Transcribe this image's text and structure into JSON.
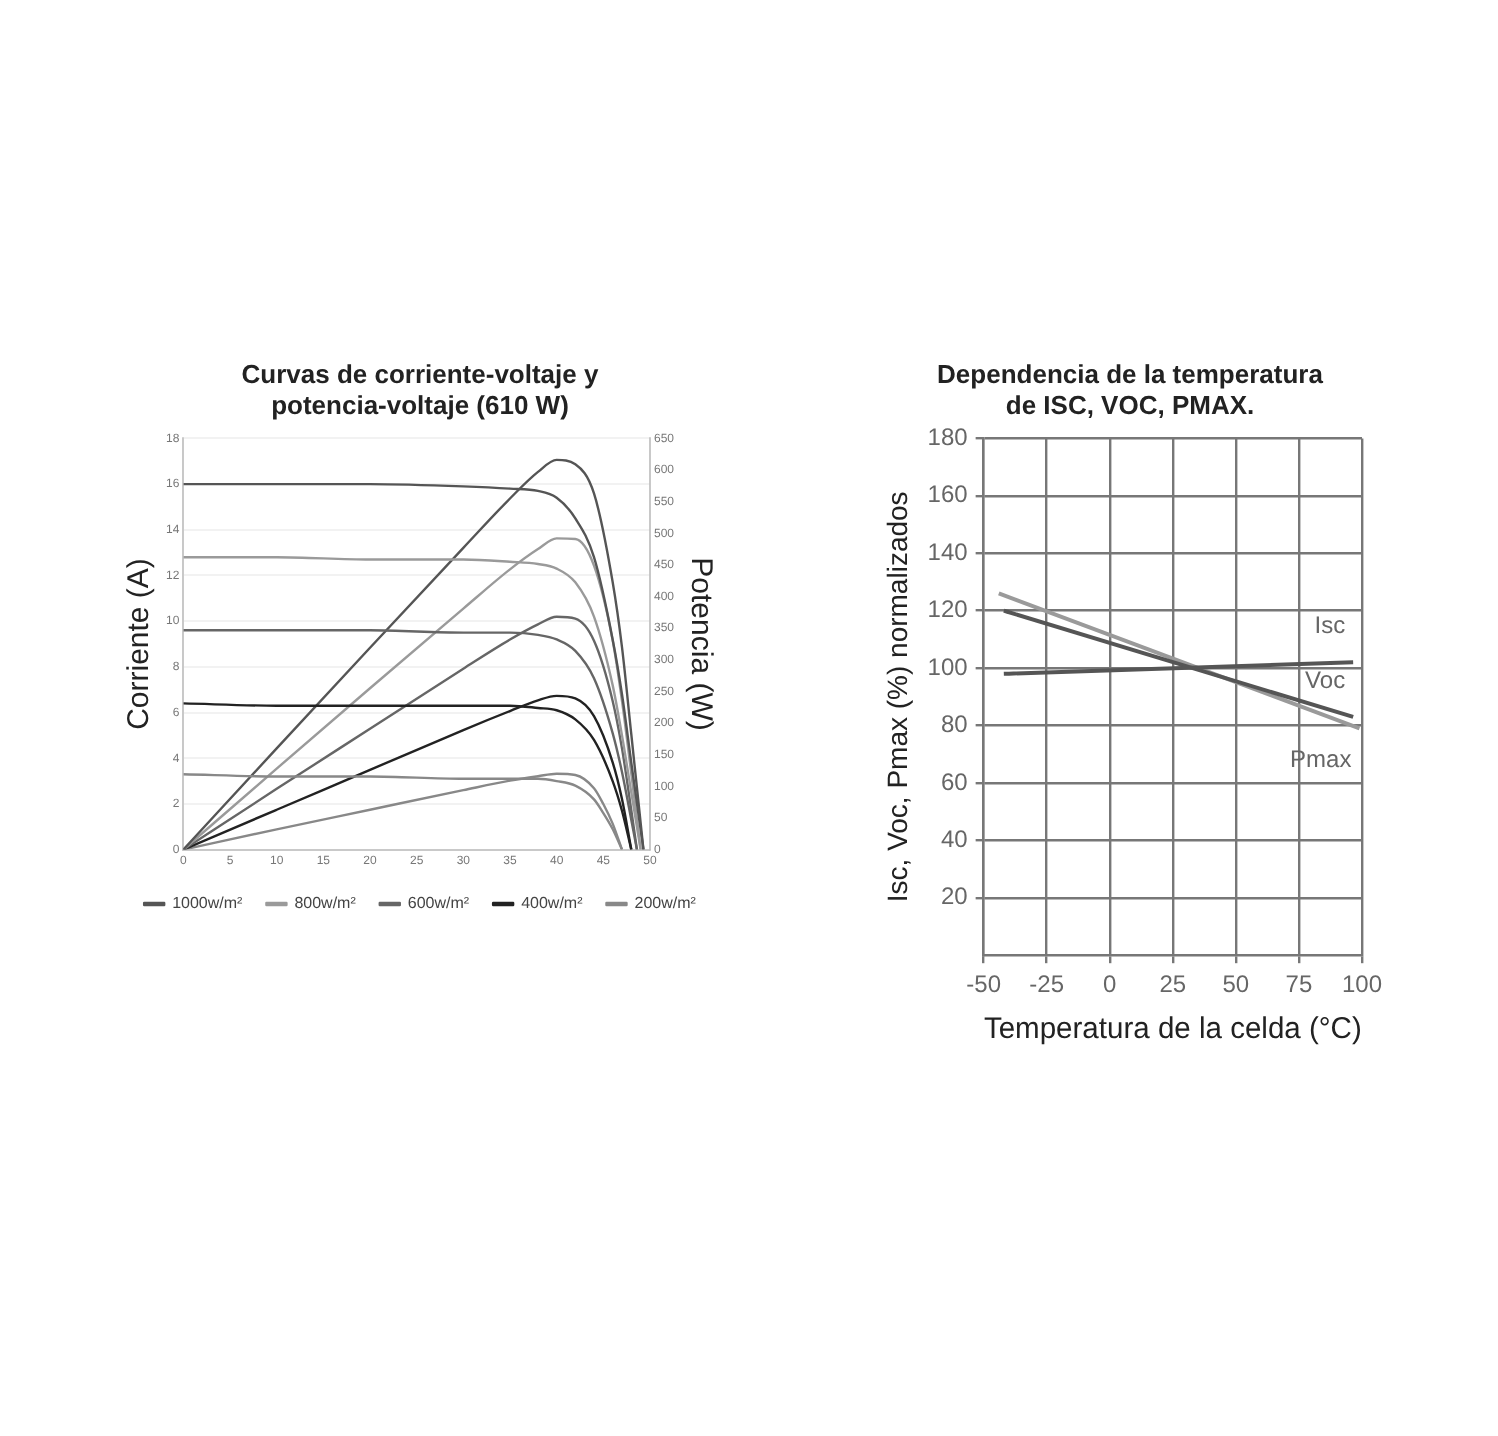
{
  "chart_data": [
    {
      "type": "line",
      "title": [
        "Curvas de corriente-voltaje y",
        "potencia-voltaje (610 W)"
      ],
      "ylabel": "Corriente (A)",
      "y2label": "Potencia (W)",
      "xlim": [
        0,
        50
      ],
      "xticks": [
        0,
        5,
        10,
        15,
        20,
        25,
        30,
        35,
        40,
        45,
        50
      ],
      "ylim": [
        0,
        18
      ],
      "yticks": [
        0,
        2,
        4,
        6,
        8,
        10,
        12,
        14,
        16,
        18
      ],
      "y2lim": [
        0,
        650
      ],
      "y2ticks": [
        0,
        50,
        100,
        150,
        200,
        250,
        300,
        350,
        400,
        450,
        500,
        550,
        600,
        650
      ],
      "grid": "y",
      "legend": "bottom",
      "marker": "none",
      "series": [
        {
          "name": "1000w/m²",
          "color": "#555555",
          "x": [
            0,
            10,
            20,
            30,
            35,
            38,
            40,
            42,
            44,
            46,
            47,
            48,
            49.3
          ],
          "values": [
            16.0,
            16.0,
            16.0,
            15.9,
            15.8,
            15.7,
            15.4,
            14.5,
            12.8,
            9.2,
            6.8,
            3.8,
            0
          ]
        },
        {
          "name": "800w/m²",
          "color": "#9a9a9a",
          "x": [
            0,
            10,
            20,
            30,
            35,
            38,
            40,
            42,
            44,
            46,
            47,
            48,
            49.0
          ],
          "values": [
            12.8,
            12.8,
            12.7,
            12.7,
            12.6,
            12.5,
            12.3,
            11.7,
            10.2,
            7.2,
            5.0,
            2.5,
            0
          ]
        },
        {
          "name": "600w/m²",
          "color": "#666666",
          "x": [
            0,
            10,
            20,
            30,
            35,
            38,
            40,
            42,
            44,
            46,
            47,
            48,
            48.6
          ],
          "values": [
            9.6,
            9.6,
            9.6,
            9.5,
            9.5,
            9.4,
            9.2,
            8.7,
            7.5,
            5.1,
            3.4,
            1.3,
            0
          ]
        },
        {
          "name": "400w/m²",
          "color": "#222222",
          "x": [
            0,
            10,
            20,
            30,
            35,
            38,
            40,
            42,
            44,
            46,
            47,
            48
          ],
          "values": [
            6.4,
            6.3,
            6.3,
            6.3,
            6.3,
            6.2,
            6.1,
            5.7,
            4.8,
            3.0,
            1.7,
            0
          ]
        },
        {
          "name": "200w/m²",
          "color": "#888888",
          "x": [
            0,
            10,
            20,
            30,
            35,
            38,
            40,
            42,
            44,
            45,
            46,
            47
          ],
          "values": [
            3.3,
            3.2,
            3.2,
            3.1,
            3.1,
            3.1,
            3.0,
            2.8,
            2.2,
            1.6,
            0.9,
            0
          ]
        },
        {
          "axis": "y2",
          "color": "#555555",
          "x": [
            0,
            10,
            20,
            30,
            35,
            38,
            40,
            42,
            44,
            46,
            47,
            48,
            49.3
          ],
          "values": [
            0,
            160,
            319,
            477,
            555,
            597,
            616,
            609,
            563,
            423,
            320,
            182,
            0
          ]
        },
        {
          "axis": "y2",
          "color": "#9a9a9a",
          "x": [
            0,
            10,
            20,
            30,
            35,
            38,
            40,
            42,
            44,
            46,
            47,
            48,
            49.0
          ],
          "values": [
            0,
            128,
            255,
            381,
            443,
            475,
            492,
            491,
            449,
            331,
            235,
            120,
            0
          ]
        },
        {
          "axis": "y2",
          "color": "#666666",
          "x": [
            0,
            10,
            20,
            30,
            35,
            38,
            40,
            42,
            44,
            46,
            47,
            48,
            48.6
          ],
          "values": [
            0,
            96,
            191,
            286,
            332,
            356,
            368,
            365,
            330,
            235,
            160,
            62,
            0
          ]
        },
        {
          "axis": "y2",
          "color": "#222222",
          "x": [
            0,
            10,
            20,
            30,
            35,
            38,
            40,
            42,
            44,
            46,
            47,
            48
          ],
          "values": [
            0,
            63,
            126,
            189,
            219,
            236,
            243,
            239,
            211,
            138,
            80,
            0
          ]
        },
        {
          "axis": "y2",
          "color": "#888888",
          "x": [
            0,
            10,
            20,
            30,
            35,
            38,
            40,
            42,
            44,
            45,
            46,
            47
          ],
          "values": [
            0,
            32,
            63,
            94,
            109,
            116,
            120,
            118,
            97,
            72,
            41,
            0
          ]
        }
      ]
    },
    {
      "type": "line",
      "title": [
        "Dependencia de la temperatura",
        "de ISC, VOC, PMAX."
      ],
      "xlabel": "Temperatura de la celda (°C)",
      "ylabel": "Isc, Voc, Pmax (%) normalizados",
      "xlim": [
        -50,
        100
      ],
      "xticks": [
        -50,
        -25,
        0,
        25,
        50,
        75,
        100
      ],
      "ylim": [
        0,
        180
      ],
      "yticks": [
        20,
        40,
        60,
        80,
        100,
        120,
        140,
        160,
        180
      ],
      "grid": true,
      "marker": "none",
      "series": [
        {
          "name": "Isc",
          "color": "#555555",
          "x": [
            -42,
            96.5
          ],
          "values": [
            98,
            102
          ]
        },
        {
          "name": "Voc",
          "color": "#555555",
          "x": [
            -42,
            96.5
          ],
          "values": [
            120,
            83
          ]
        },
        {
          "name": "Pmax",
          "color": "#9a9a9a",
          "x": [
            -44,
            99
          ],
          "values": [
            126,
            79
          ]
        }
      ]
    }
  ]
}
